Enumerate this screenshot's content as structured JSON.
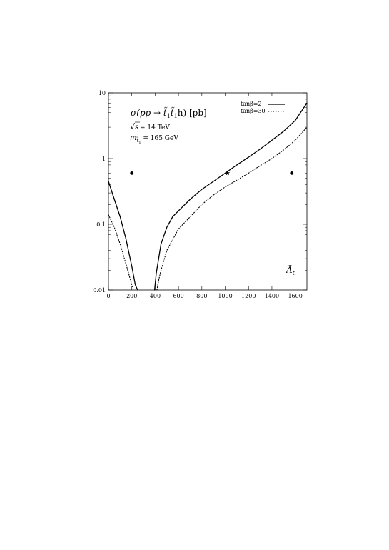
{
  "chart_data": {
    "type": "line",
    "title": "σ(pp → t̃₁t̃₁h) [pb]",
    "xlabel": "Ã_t",
    "ylabel": "",
    "x_scale": "linear",
    "y_scale": "log",
    "xlim": [
      0,
      1700
    ],
    "ylim": [
      0.01,
      10
    ],
    "grid": false,
    "legend_position": "top-right",
    "x_ticks": [
      0,
      200,
      400,
      600,
      800,
      1000,
      1200,
      1400,
      1600
    ],
    "x_tick_labels": [
      "0",
      "200",
      "400",
      "600",
      "800",
      "1000",
      "1200",
      "1400",
      "1600"
    ],
    "y_ticks": [
      0.01,
      0.1,
      1,
      10
    ],
    "y_tick_labels": [
      "0.01",
      "0.1",
      "1",
      "10"
    ],
    "annotations": {
      "title_main": "σ(pp → t̃",
      "title_sub1": "1",
      "title_mid": "t̃",
      "title_sub2": "1",
      "title_end": "h) [pb]",
      "sqrt_symbol": "√",
      "sqrt_arg": "s",
      "energy_text": " = 14 TeV",
      "mass_label": "m",
      "mass_sub": "t̃",
      "mass_subsub": "1",
      "mass_value": " = 165 GeV",
      "axis_var": "Ã",
      "axis_var_sub": "t"
    },
    "series": [
      {
        "name": "tanβ=2",
        "style": "solid",
        "segments": [
          [
            [
              0,
              0.45
            ],
            [
              50,
              0.24
            ],
            [
              100,
              0.13
            ],
            [
              150,
              0.06
            ],
            [
              200,
              0.023
            ],
            [
              230,
              0.012
            ],
            [
              250,
              0.008
            ]
          ],
          [
            [
              395,
              0.01
            ],
            [
              410,
              0.018
            ],
            [
              450,
              0.05
            ],
            [
              500,
              0.09
            ],
            [
              550,
              0.13
            ],
            [
              600,
              0.16
            ],
            [
              700,
              0.24
            ],
            [
              800,
              0.34
            ],
            [
              900,
              0.45
            ],
            [
              1000,
              0.6
            ],
            [
              1100,
              0.8
            ],
            [
              1200,
              1.05
            ],
            [
              1300,
              1.4
            ],
            [
              1400,
              1.9
            ],
            [
              1500,
              2.6
            ],
            [
              1600,
              3.8
            ],
            [
              1700,
              7.0
            ]
          ]
        ]
      },
      {
        "name": "tanβ=30",
        "style": "dotted",
        "segments": [
          [
            [
              0,
              0.14
            ],
            [
              50,
              0.09
            ],
            [
              100,
              0.05
            ],
            [
              150,
              0.025
            ],
            [
              200,
              0.012
            ],
            [
              215,
              0.009
            ]
          ],
          [
            [
              415,
              0.01
            ],
            [
              430,
              0.014
            ],
            [
              450,
              0.02
            ],
            [
              500,
              0.04
            ],
            [
              600,
              0.085
            ],
            [
              700,
              0.13
            ],
            [
              800,
              0.2
            ],
            [
              900,
              0.28
            ],
            [
              1000,
              0.37
            ],
            [
              1100,
              0.47
            ],
            [
              1200,
              0.6
            ],
            [
              1300,
              0.78
            ],
            [
              1400,
              1.0
            ],
            [
              1500,
              1.35
            ],
            [
              1600,
              1.9
            ],
            [
              1700,
              3.0
            ]
          ]
        ]
      }
    ],
    "markers": [
      {
        "shape": "dot",
        "x": 200,
        "y": 0.6
      },
      {
        "shape": "star",
        "x": 1020,
        "y": 0.6
      },
      {
        "shape": "dot",
        "x": 1570,
        "y": 0.6
      }
    ],
    "colors": {
      "line": "#000000",
      "background": "#ffffff"
    }
  }
}
